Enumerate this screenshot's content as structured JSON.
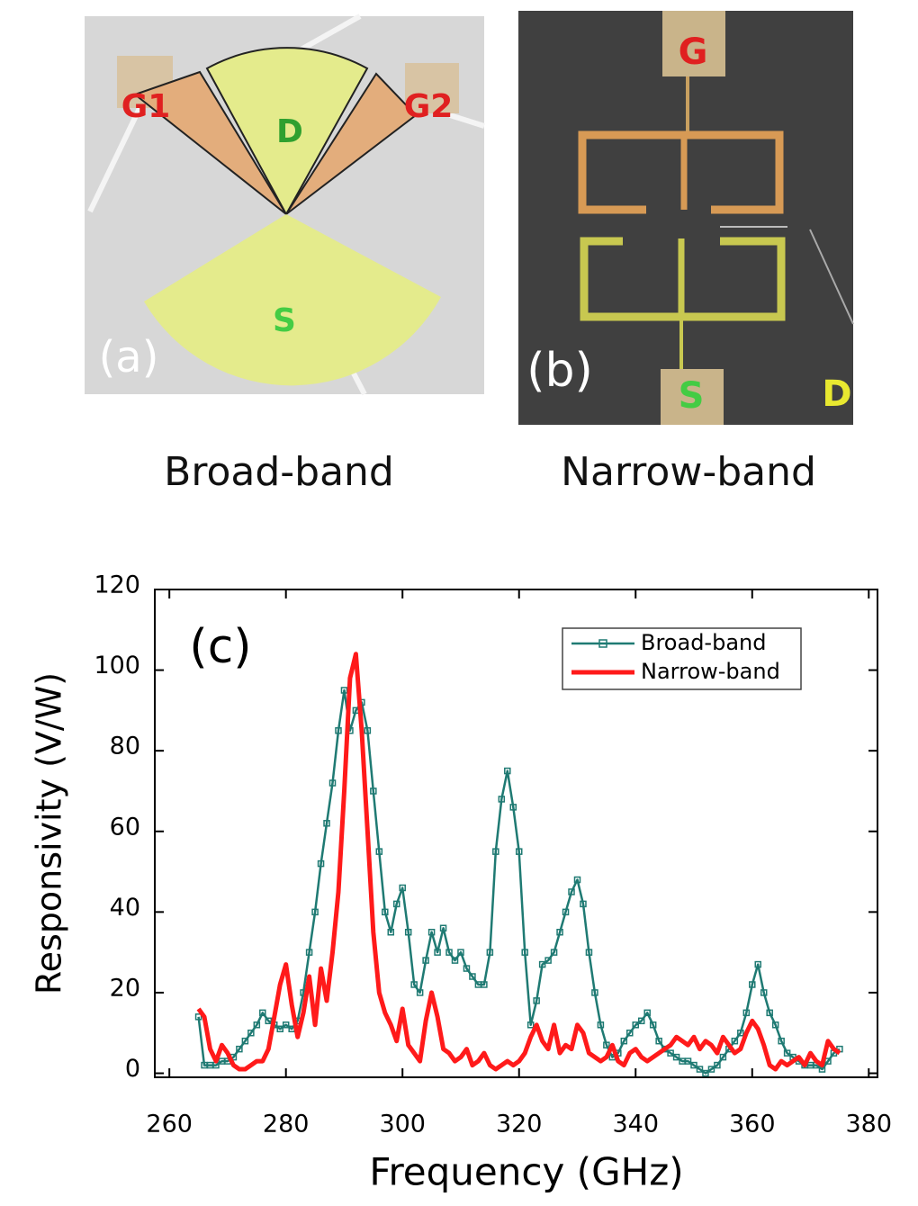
{
  "panels": [
    {
      "label": "(a)",
      "caption": "Broad-band",
      "terminals": [
        "G1",
        "D",
        "G2",
        "S"
      ]
    },
    {
      "label": "(b)",
      "caption": "Narrow-band",
      "terminals": [
        "G",
        "S",
        "D"
      ]
    }
  ],
  "chart_data": {
    "type": "line",
    "panel_label": "(c)",
    "x_label": "Frequency (GHz)",
    "y_label": "Responsivity (V/W)",
    "xlim": [
      257.5,
      381.5
    ],
    "xticks": [
      260,
      280,
      300,
      320,
      340,
      360,
      380
    ],
    "ylim": [
      -1,
      120
    ],
    "yticks": [
      0,
      20,
      40,
      60,
      80,
      100,
      120
    ],
    "legend": "upper right",
    "x": [
      265,
      266,
      267,
      268,
      269,
      270,
      271,
      272,
      273,
      274,
      275,
      276,
      277,
      278,
      279,
      280,
      281,
      282,
      283,
      284,
      285,
      286,
      287,
      288,
      289,
      290,
      291,
      292,
      293,
      294,
      295,
      296,
      297,
      298,
      299,
      300,
      301,
      302,
      303,
      304,
      305,
      306,
      307,
      308,
      309,
      310,
      311,
      312,
      313,
      314,
      315,
      316,
      317,
      318,
      319,
      320,
      321,
      322,
      323,
      324,
      325,
      326,
      327,
      328,
      329,
      330,
      331,
      332,
      333,
      334,
      335,
      336,
      337,
      338,
      339,
      340,
      341,
      342,
      343,
      344,
      345,
      346,
      347,
      348,
      349,
      350,
      351,
      352,
      353,
      354,
      355,
      356,
      357,
      358,
      359,
      360,
      361,
      362,
      363,
      364,
      365,
      366,
      367,
      368,
      369,
      370,
      371,
      372,
      373,
      374,
      375
    ],
    "series": [
      {
        "name": "Broad-band",
        "color": "#1f7a73",
        "marker": "square",
        "values": [
          14,
          2,
          2,
          2,
          3,
          3,
          4,
          6,
          8,
          10,
          12,
          15,
          13,
          12,
          11,
          12,
          11,
          13,
          20,
          30,
          40,
          52,
          62,
          72,
          85,
          95,
          85,
          90,
          92,
          85,
          70,
          55,
          40,
          35,
          42,
          46,
          35,
          22,
          20,
          28,
          35,
          30,
          36,
          30,
          28,
          30,
          26,
          24,
          22,
          22,
          30,
          55,
          68,
          75,
          66,
          55,
          30,
          12,
          18,
          27,
          28,
          30,
          35,
          40,
          45,
          48,
          42,
          30,
          20,
          12,
          7,
          4,
          5,
          8,
          10,
          12,
          13,
          15,
          12,
          8,
          6,
          5,
          4,
          3,
          3,
          2,
          1,
          0,
          1,
          2,
          4,
          6,
          8,
          10,
          15,
          22,
          27,
          20,
          15,
          12,
          8,
          5,
          4,
          3,
          2,
          2,
          2,
          1,
          3,
          5,
          6
        ]
      },
      {
        "name": "Narrow-band",
        "color": "#ff1a1a",
        "values": [
          16,
          14,
          6,
          3,
          7,
          5,
          2,
          1,
          1,
          2,
          3,
          3,
          6,
          14,
          22,
          27,
          17,
          9,
          15,
          24,
          12,
          26,
          18,
          30,
          45,
          70,
          98,
          104,
          85,
          60,
          35,
          20,
          15,
          12,
          8,
          16,
          7,
          5,
          3,
          13,
          20,
          14,
          6,
          5,
          3,
          4,
          6,
          2,
          3,
          5,
          2,
          1,
          2,
          3,
          2,
          3,
          5,
          9,
          12,
          8,
          6,
          12,
          5,
          7,
          6,
          12,
          10,
          5,
          4,
          3,
          4,
          7,
          3,
          2,
          5,
          6,
          4,
          3,
          4,
          5,
          6,
          7,
          9,
          8,
          7,
          9,
          6,
          8,
          7,
          5,
          9,
          7,
          5,
          6,
          10,
          13,
          11,
          7,
          2,
          1,
          3,
          2,
          3,
          4,
          2,
          5,
          3,
          2,
          8,
          6,
          5
        ]
      }
    ]
  }
}
